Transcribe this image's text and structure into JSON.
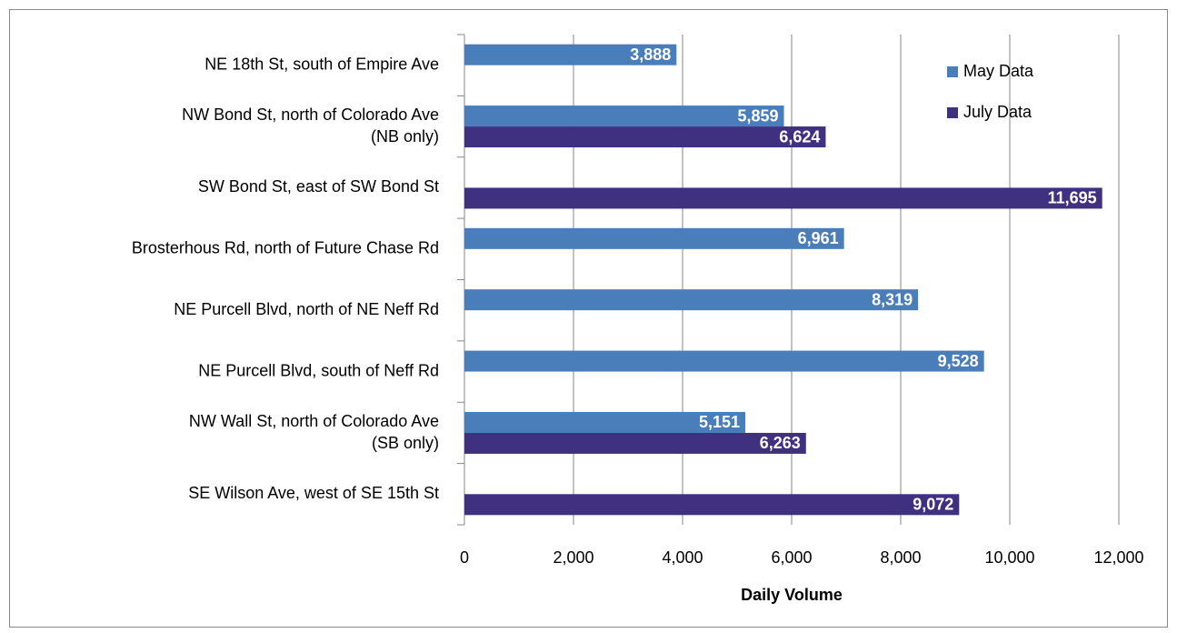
{
  "chart_data": {
    "type": "bar",
    "orientation": "horizontal",
    "categories": [
      "NE 18th St, south of Empire Ave",
      "NW Bond St, north of Colorado Ave\n(NB only)",
      "SW Bond St, east of SW Bond St",
      "Brosterhous Rd, north of Future Chase Rd",
      "NE Purcell Blvd, north of NE Neff Rd",
      "NE Purcell Blvd, south of Neff Rd",
      "NW Wall St, north of Colorado Ave\n(SB only)",
      "SE Wilson Ave, west of SE 15th St"
    ],
    "series": [
      {
        "name": "May Data",
        "color": "#4a7ebb",
        "values": [
          3888,
          5859,
          null,
          6961,
          8319,
          9528,
          5151,
          null
        ],
        "value_labels": [
          "3,888",
          "5,859",
          null,
          "6,961",
          "8,319",
          "9,528",
          "5,151",
          null
        ]
      },
      {
        "name": "July Data",
        "color": "#3f3180",
        "values": [
          null,
          6624,
          11695,
          null,
          null,
          null,
          6263,
          9072
        ],
        "value_labels": [
          null,
          "6,624",
          "11,695",
          null,
          null,
          null,
          "6,263",
          "9,072"
        ]
      }
    ],
    "xlabel": "Daily Volume",
    "xlim": [
      0,
      12000
    ],
    "xticks": [
      0,
      {
        "value": 2000,
        "label": "2,000"
      },
      {
        "value": 4000,
        "label": "4,000"
      },
      {
        "value": 6000,
        "label": "6,000"
      },
      {
        "value": 8000,
        "label": "8,000"
      },
      {
        "value": 10000,
        "label": "10,000"
      },
      {
        "value": 12000,
        "label": "12,000"
      }
    ],
    "grid": true,
    "legend": "top-right"
  }
}
